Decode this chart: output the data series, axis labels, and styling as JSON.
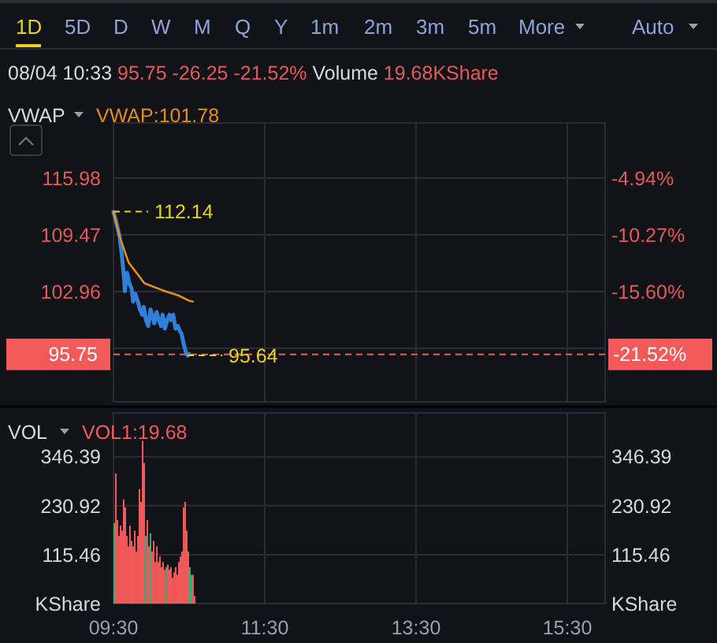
{
  "chart_data": [
    {
      "type": "line",
      "title": "08/04 10:33 95.75 -26.25 -21.52% Volume 19.68KShare",
      "legend_title": "VWAP",
      "legend": "top left",
      "xlim": [
        9.5,
        16
      ],
      "xticks": [
        {
          "value": 9.5,
          "label": null
        },
        {
          "value": 11.5,
          "label": null
        },
        {
          "value": 13.5,
          "label": null
        },
        {
          "value": 15.5,
          "label": null
        }
      ],
      "ylim": [
        90.3,
        122.3
      ],
      "yticks": [
        115.98,
        109.47,
        102.96,
        {
          "value": 96.45,
          "label": null
        }
      ],
      "y2lim": [
        -25.98,
        0.25
      ],
      "y2ticks": [
        {
          "value": -4.94,
          "label": "-4.94%"
        },
        {
          "value": -10.27,
          "label": "-10.27%"
        },
        {
          "value": -15.6,
          "label": "-15.60%"
        }
      ],
      "grid": true,
      "tick_labels": "y",
      "series": [
        {
          "color": "#2f80d8",
          "x": [
            9.5,
            9.54,
            9.58,
            9.61,
            9.64,
            9.65,
            9.68,
            9.71,
            9.74,
            9.76,
            9.79,
            9.82,
            9.85,
            9.88,
            9.9,
            9.93,
            9.96,
            9.99,
            10.01,
            10.04,
            10.07,
            10.1,
            10.13,
            10.15,
            10.18,
            10.21,
            10.24,
            10.26,
            10.29,
            10.32,
            10.35,
            10.38,
            10.4,
            10.43,
            10.46,
            10.48,
            10.5
          ],
          "values": [
            112.1,
            110.8,
            109.3,
            107.2,
            104.5,
            103.0,
            105.1,
            103.9,
            103.3,
            101.8,
            102.7,
            101.9,
            100.9,
            100.3,
            101.2,
            99.7,
            99.0,
            100.9,
            100.3,
            99.3,
            100.6,
            99.7,
            99.0,
            100.3,
            98.7,
            99.7,
            100.3,
            99.7,
            100.3,
            98.7,
            99.0,
            98.4,
            98.1,
            96.9,
            95.9,
            95.6,
            95.8
          ]
        },
        {
          "name": "VWAP:101.78",
          "color": "#e0901a",
          "x": [
            9.5,
            9.58,
            9.7,
            9.91,
            10.15,
            10.36,
            10.5,
            10.55
          ],
          "values": [
            112.1,
            109.3,
            106.3,
            103.9,
            103.1,
            102.5,
            101.9,
            101.8
          ]
        }
      ],
      "ref_lines": [
        {
          "axis": "y",
          "value": 95.75,
          "label": "95.75",
          "color": "#f25a5a",
          "line_style": "dashed"
        }
      ],
      "annotations": [
        "1D",
        "5D",
        "D",
        "W",
        "M",
        "Q",
        "Y",
        "1m",
        "2m",
        "3m",
        "5m",
        "More",
        "Auto",
        {
          "text": "112.14",
          "x": 9.5,
          "y": 112.14
        },
        {
          "text": "95.64",
          "x": 10.48,
          "y": 95.64
        },
        "-21.52%"
      ]
    },
    {
      "type": "bar",
      "legend_title": "VOL",
      "legend": "top left",
      "xlim": [
        9.5,
        16
      ],
      "xticks": [
        {
          "value": 9.5,
          "label": "09:30"
        },
        {
          "value": 11.5,
          "label": "11:30"
        },
        {
          "value": 13.5,
          "label": "13:30"
        },
        {
          "value": 15.5,
          "label": "15:30"
        }
      ],
      "ylim": [
        0,
        450
      ],
      "yticks": [
        {
          "value": 0,
          "label": "KShare"
        },
        115.46,
        230.92,
        346.39
      ],
      "y2lim": [
        0,
        450
      ],
      "y2ticks": [
        {
          "value": 0,
          "label": "KShare"
        },
        115.46,
        230.92,
        346.39
      ],
      "grid": true,
      "series": [
        {
          "name": "VOL1:19.68",
          "color": "#f25a5a",
          "x": [
            9.5,
            9.521,
            9.542,
            9.563,
            9.583,
            9.604,
            9.625,
            9.646,
            9.667,
            9.688,
            9.708,
            9.729,
            9.75,
            9.771,
            9.792,
            9.813,
            9.833,
            9.854,
            9.875,
            9.896,
            9.917,
            9.938,
            9.958,
            9.979,
            10.0,
            10.021,
            10.042,
            10.063,
            10.083,
            10.104,
            10.125,
            10.146,
            10.167,
            10.188,
            10.208,
            10.229,
            10.25,
            10.271,
            10.292,
            10.313,
            10.333,
            10.354,
            10.375,
            10.396,
            10.417,
            10.438,
            10.458,
            10.479,
            10.5,
            10.521,
            10.542,
            10.563
          ],
          "values": [
            190,
            307,
            197,
            160,
            184,
            172,
            246,
            227,
            160,
            135,
            184,
            148,
            135,
            172,
            123,
            160,
            270,
            240,
            384,
            332,
            160,
            197,
            135,
            166,
            123,
            148,
            98,
            135,
            98,
            111,
            86,
            98,
            80,
            86,
            92,
            80,
            86,
            61,
            74,
            86,
            68,
            98,
            111,
            123,
            227,
            240,
            172,
            123,
            86,
            68,
            68,
            18
          ],
          "colors": [
            "#2db37a",
            "#f25a5a",
            "#f25a5a",
            "#f25a5a",
            "#f25a5a",
            "#f25a5a",
            "#f25a5a",
            "#f25a5a",
            "#f25a5a",
            "#f25a5a",
            "#f25a5a",
            "#f25a5a",
            "#f25a5a",
            "#f25a5a",
            "#f25a5a",
            "#f25a5a",
            "#f25a5a",
            "#f25a5a",
            "#f25a5a",
            "#f25a5a",
            "#2db37a",
            "#f25a5a",
            "#f25a5a",
            "#2db37a",
            "#f25a5a",
            "#f25a5a",
            "#f25a5a",
            "#f25a5a",
            "#f25a5a",
            "#f25a5a",
            "#f25a5a",
            "#f25a5a",
            "#f25a5a",
            "#2db37a",
            "#f25a5a",
            "#f25a5a",
            "#f25a5a",
            "#f25a5a",
            "#f25a5a",
            "#f25a5a",
            "#f25a5a",
            "#f25a5a",
            "#f25a5a",
            "#f25a5a",
            "#f25a5a",
            "#f25a5a",
            "#f25a5a",
            "#f25a5a",
            "#2db37a",
            "#2db37a",
            "#f25a5a",
            "#f25a5a"
          ]
        }
      ]
    }
  ]
}
